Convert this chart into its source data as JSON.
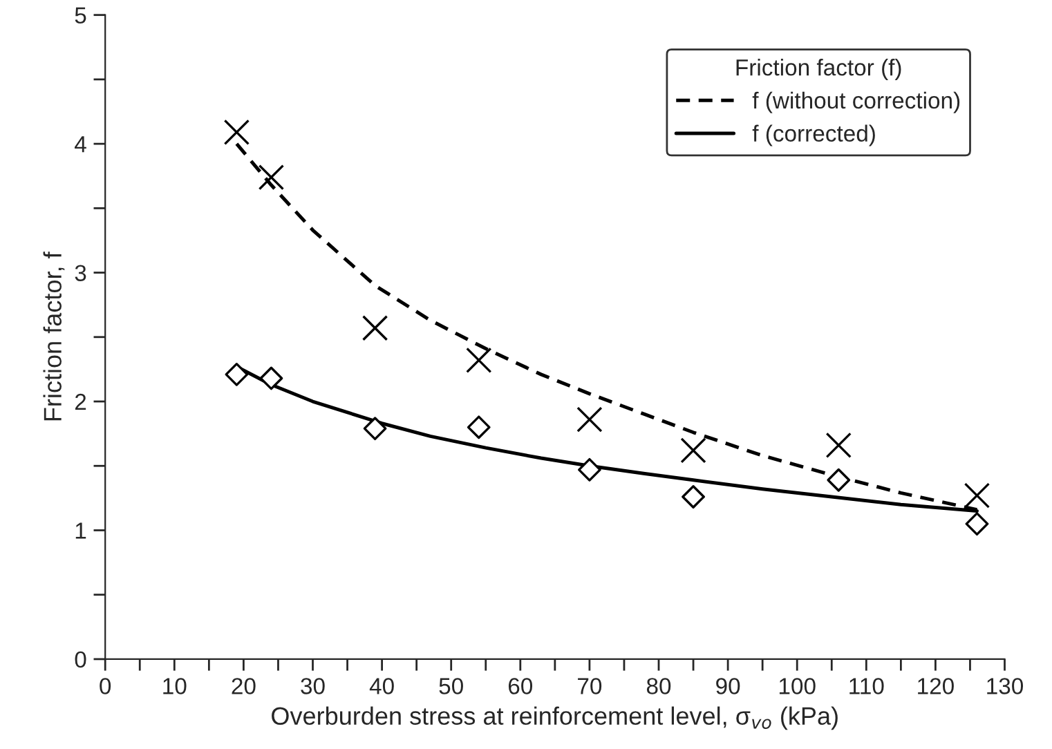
{
  "chart_data": {
    "type": "scatter",
    "xlabel": "Overburden stress at reinforcement level, σ$_{vo}$ (kPa)",
    "ylabel": "Friction factor, f",
    "legend_title": "Friction factor (f)",
    "xlim": [
      0,
      130
    ],
    "ylim": [
      0,
      5
    ],
    "xticks": [
      0,
      {
        "value": 5,
        "label": null
      },
      10,
      {
        "value": 15,
        "label": null
      },
      20,
      {
        "value": 25,
        "label": null
      },
      30,
      {
        "value": 35,
        "label": null
      },
      40,
      {
        "value": 45,
        "label": null
      },
      50,
      {
        "value": 55,
        "label": null
      },
      60,
      {
        "value": 65,
        "label": null
      },
      70,
      {
        "value": 75,
        "label": null
      },
      80,
      {
        "value": 85,
        "label": null
      },
      90,
      {
        "value": 95,
        "label": null
      },
      100,
      {
        "value": 105,
        "label": null
      },
      110,
      {
        "value": 115,
        "label": null
      },
      120,
      {
        "value": 125,
        "label": null
      },
      130
    ],
    "yticks": [
      0,
      {
        "value": 0.5,
        "label": null
      },
      1,
      {
        "value": 1.5,
        "label": null
      },
      2,
      {
        "value": 2.5,
        "label": null
      },
      3,
      {
        "value": 3.5,
        "label": null
      },
      4,
      {
        "value": 4.5,
        "label": null
      },
      5
    ],
    "grid": false,
    "legend": "top right",
    "series": [
      {
        "marker": "cross",
        "color": "#000000",
        "x": [
          19,
          24,
          39,
          54,
          70,
          85,
          106,
          126
        ],
        "values": [
          4.09,
          3.74,
          2.57,
          2.32,
          1.86,
          1.62,
          1.66,
          1.27
        ]
      },
      {
        "marker": "diamond",
        "color": "#000000",
        "x": [
          19,
          24,
          39,
          54,
          70,
          85,
          106,
          126
        ],
        "values": [
          2.21,
          2.18,
          1.79,
          1.8,
          1.47,
          1.26,
          1.39,
          1.05
        ]
      },
      {
        "type": "line",
        "name": "f (without correction)",
        "line_style": "dashed",
        "color": "#000000",
        "x": [
          19,
          24,
          30,
          39,
          47,
          55,
          63,
          70,
          78,
          85,
          95,
          105,
          115,
          126
        ],
        "values": [
          4.0,
          3.68,
          3.33,
          2.9,
          2.63,
          2.41,
          2.21,
          2.06,
          1.9,
          1.76,
          1.58,
          1.43,
          1.29,
          1.16
        ]
      },
      {
        "type": "line",
        "name": "f (corrected)",
        "line_style": "solid",
        "color": "#000000",
        "x": [
          19,
          24,
          30,
          40,
          47,
          55,
          63,
          70,
          78,
          85,
          95,
          105,
          115,
          126
        ],
        "values": [
          2.27,
          2.13,
          2.0,
          1.83,
          1.73,
          1.64,
          1.56,
          1.5,
          1.44,
          1.39,
          1.32,
          1.26,
          1.2,
          1.15
        ]
      }
    ]
  }
}
